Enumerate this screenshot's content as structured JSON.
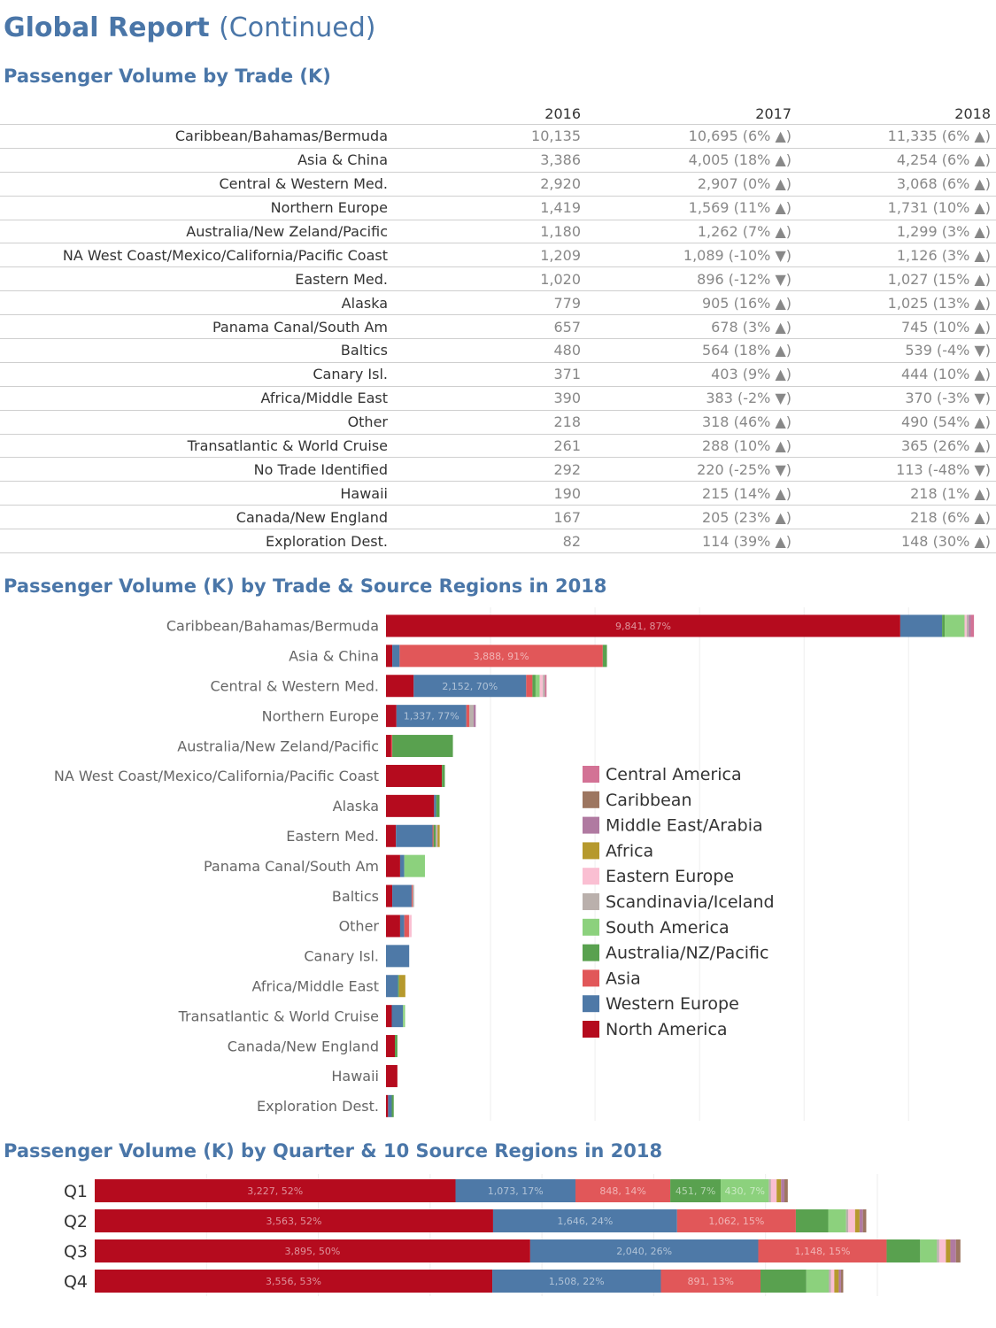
{
  "page": {
    "title_main": "Global Report",
    "title_sub": "(Continued)",
    "section1_title": "Passenger Volume by Trade (K)",
    "section2_title": "Passenger Volume (K) by Trade & Source Regions in 2018",
    "section3_title": "Passenger Volume (K) by Quarter & 10 Source Regions in 2018"
  },
  "trade_table": {
    "columns": [
      "2016",
      "2017",
      "2018"
    ],
    "rows": [
      {
        "name": "Caribbean/Bahamas/Bermuda",
        "v2016": "10,135",
        "v2017": "10,695 (6% ▲)",
        "v2018": "11,335 (6% ▲)"
      },
      {
        "name": "Asia & China",
        "v2016": "3,386",
        "v2017": "4,005 (18% ▲)",
        "v2018": "4,254 (6% ▲)"
      },
      {
        "name": "Central & Western Med.",
        "v2016": "2,920",
        "v2017": "2,907 (0% ▲)",
        "v2018": "3,068 (6% ▲)"
      },
      {
        "name": "Northern Europe",
        "v2016": "1,419",
        "v2017": "1,569 (11% ▲)",
        "v2018": "1,731 (10% ▲)"
      },
      {
        "name": "Australia/New Zeland/Pacific",
        "v2016": "1,180",
        "v2017": "1,262 (7% ▲)",
        "v2018": "1,299 (3% ▲)"
      },
      {
        "name": "NA West Coast/Mexico/California/Pacific Coast",
        "v2016": "1,209",
        "v2017": "1,089 (-10% ▼)",
        "v2018": "1,126 (3% ▲)"
      },
      {
        "name": "Eastern Med.",
        "v2016": "1,020",
        "v2017": "896 (-12% ▼)",
        "v2018": "1,027 (15% ▲)"
      },
      {
        "name": "Alaska",
        "v2016": "779",
        "v2017": "905 (16% ▲)",
        "v2018": "1,025 (13% ▲)"
      },
      {
        "name": "Panama Canal/South Am",
        "v2016": "657",
        "v2017": "678 (3% ▲)",
        "v2018": "745 (10% ▲)"
      },
      {
        "name": "Baltics",
        "v2016": "480",
        "v2017": "564 (18% ▲)",
        "v2018": "539 (-4% ▼)"
      },
      {
        "name": "Canary Isl.",
        "v2016": "371",
        "v2017": "403 (9% ▲)",
        "v2018": "444 (10% ▲)"
      },
      {
        "name": "Africa/Middle East",
        "v2016": "390",
        "v2017": "383 (-2% ▼)",
        "v2018": "370 (-3% ▼)"
      },
      {
        "name": "Other",
        "v2016": "218",
        "v2017": "318 (46% ▲)",
        "v2018": "490 (54% ▲)"
      },
      {
        "name": "Transatlantic & World Cruise",
        "v2016": "261",
        "v2017": "288 (10% ▲)",
        "v2018": "365 (26% ▲)"
      },
      {
        "name": "No Trade Identified",
        "v2016": "292",
        "v2017": "220 (-25% ▼)",
        "v2018": "113 (-48% ▼)"
      },
      {
        "name": "Hawaii",
        "v2016": "190",
        "v2017": "215 (14% ▲)",
        "v2018": "218 (1% ▲)"
      },
      {
        "name": "Canada/New England",
        "v2016": "167",
        "v2017": "205 (23% ▲)",
        "v2018": "218 (6% ▲)"
      },
      {
        "name": "Exploration Dest.",
        "v2016": "82",
        "v2017": "114 (39% ▲)",
        "v2018": "148 (30% ▲)"
      }
    ]
  },
  "region_colors": {
    "North America": "#b50b1e",
    "Western Europe": "#4e79a7",
    "Asia": "#e15759",
    "Australia/NZ/Pacific": "#59a14f",
    "South America": "#8cd17d",
    "Scandinavia/Iceland": "#bab0ac",
    "Eastern Europe": "#fabfd2",
    "Africa": "#b6992d",
    "Middle East/Arabia": "#b07aa1",
    "Caribbean": "#9d7660",
    "Central America": "#d37295"
  },
  "chart_data": [
    {
      "type": "bar",
      "orientation": "horizontal",
      "stacked": true,
      "title": "Passenger Volume (K) by Trade & Source Regions in 2018",
      "xlim": [
        0,
        11300
      ],
      "gridlines": [
        2000,
        4000,
        6000,
        8000,
        10000
      ],
      "legend_position": "center-right",
      "legend": [
        "Central America",
        "Caribbean",
        "Middle East/Arabia",
        "Africa",
        "Eastern Europe",
        "Scandinavia/Iceland",
        "South America",
        "Australia/NZ/Pacific",
        "Asia",
        "Western Europe",
        "North America"
      ],
      "categories": [
        {
          "name": "Caribbean/Bahamas/Bermuda",
          "segments": [
            [
              "North America",
              9841,
              "9,841, 87%"
            ],
            [
              "Western Europe",
              800
            ],
            [
              "Australia/NZ/Pacific",
              50
            ],
            [
              "South America",
              380
            ],
            [
              "Eastern Europe",
              40
            ],
            [
              "Scandinavia/Iceland",
              40
            ],
            [
              "Middle East/Arabia",
              40
            ],
            [
              "Central America",
              60
            ]
          ]
        },
        {
          "name": "Asia & China",
          "segments": [
            [
              "North America",
              120
            ],
            [
              "Western Europe",
              140
            ],
            [
              "Asia",
              3888,
              "3,888, 91%"
            ],
            [
              "Australia/NZ/Pacific",
              80
            ]
          ]
        },
        {
          "name": "Central & Western Med.",
          "segments": [
            [
              "North America",
              530
            ],
            [
              "Western Europe",
              2152,
              "2,152, 70%"
            ],
            [
              "Asia",
              120
            ],
            [
              "Australia/NZ/Pacific",
              60
            ],
            [
              "South America",
              80
            ],
            [
              "Eastern Europe",
              60
            ],
            [
              "Scandinavia/Iceland",
              40
            ],
            [
              "Central America",
              30
            ]
          ]
        },
        {
          "name": "Northern Europe",
          "segments": [
            [
              "North America",
              200
            ],
            [
              "Western Europe",
              1337,
              "1,337, 77%"
            ],
            [
              "Asia",
              60
            ],
            [
              "Scandinavia/Iceland",
              80
            ],
            [
              "Middle East/Arabia",
              40
            ]
          ]
        },
        {
          "name": "Australia/New Zeland/Pacific",
          "segments": [
            [
              "North America",
              100
            ],
            [
              "Asia",
              20
            ],
            [
              "Australia/NZ/Pacific",
              1160
            ]
          ]
        },
        {
          "name": "NA West Coast/Mexico/California/Pacific Coast",
          "segments": [
            [
              "North America",
              1070
            ],
            [
              "Australia/NZ/Pacific",
              56
            ]
          ]
        },
        {
          "name": "Alaska",
          "segments": [
            [
              "North America",
              920
            ],
            [
              "Western Europe",
              40
            ],
            [
              "Australia/NZ/Pacific",
              65
            ]
          ]
        },
        {
          "name": "Eastern Med.",
          "segments": [
            [
              "North America",
              190
            ],
            [
              "Western Europe",
              700
            ],
            [
              "Asia",
              20
            ],
            [
              "Australia/NZ/Pacific",
              40
            ],
            [
              "Scandinavia/Iceland",
              37
            ],
            [
              "Africa",
              40
            ]
          ]
        },
        {
          "name": "Panama Canal/South Am",
          "segments": [
            [
              "North America",
              270
            ],
            [
              "Western Europe",
              80
            ],
            [
              "South America",
              395
            ]
          ]
        },
        {
          "name": "Baltics",
          "segments": [
            [
              "North America",
              120
            ],
            [
              "Western Europe",
              370
            ],
            [
              "Asia",
              20
            ],
            [
              "Scandinavia/Iceland",
              29
            ]
          ]
        },
        {
          "name": "Other",
          "segments": [
            [
              "North America",
              270
            ],
            [
              "Western Europe",
              80
            ],
            [
              "Asia",
              90
            ],
            [
              "Eastern Europe",
              50
            ]
          ]
        },
        {
          "name": "Canary Isl.",
          "segments": [
            [
              "Western Europe",
              444
            ]
          ]
        },
        {
          "name": "Africa/Middle East",
          "segments": [
            [
              "Western Europe",
              230
            ],
            [
              "Australia/NZ/Pacific",
              20
            ],
            [
              "Africa",
              120
            ]
          ]
        },
        {
          "name": "Transatlantic & World Cruise",
          "segments": [
            [
              "North America",
              110
            ],
            [
              "Western Europe",
              215
            ],
            [
              "South America",
              40
            ]
          ]
        },
        {
          "name": "Canada/New England",
          "segments": [
            [
              "North America",
              170
            ],
            [
              "Australia/NZ/Pacific",
              48
            ]
          ]
        },
        {
          "name": "Hawaii",
          "segments": [
            [
              "North America",
              218
            ]
          ]
        },
        {
          "name": "Exploration Dest.",
          "segments": [
            [
              "North America",
              40
            ],
            [
              "Western Europe",
              70
            ],
            [
              "Australia/NZ/Pacific",
              38
            ]
          ]
        }
      ]
    },
    {
      "type": "bar",
      "orientation": "horizontal",
      "stacked": true,
      "title": "Passenger Volume (K) by Quarter & 10 Source Regions in 2018",
      "xlim": [
        0,
        7800
      ],
      "gridlines": [
        1000,
        2000,
        3000,
        4000,
        5000,
        6000,
        7000
      ],
      "categories": [
        {
          "name": "Q1",
          "segments": [
            [
              "North America",
              3227,
              "3,227, 52%"
            ],
            [
              "Western Europe",
              1073,
              "1,073, 17%"
            ],
            [
              "Asia",
              848,
              "848, 14%"
            ],
            [
              "Australia/NZ/Pacific",
              451,
              "451, 7%"
            ],
            [
              "South America",
              430,
              "430, 7%"
            ],
            [
              "Scandinavia/Iceland",
              20
            ],
            [
              "Eastern Europe",
              50
            ],
            [
              "Africa",
              40
            ],
            [
              "Middle East/Arabia",
              30
            ],
            [
              "Caribbean",
              30
            ]
          ]
        },
        {
          "name": "Q2",
          "segments": [
            [
              "North America",
              3563,
              "3,563, 52%"
            ],
            [
              "Western Europe",
              1646,
              "1,646, 24%"
            ],
            [
              "Asia",
              1062,
              "1,062, 15%"
            ],
            [
              "Australia/NZ/Pacific",
              290
            ],
            [
              "South America",
              160
            ],
            [
              "Scandinavia/Iceland",
              20
            ],
            [
              "Eastern Europe",
              60
            ],
            [
              "Africa",
              40
            ],
            [
              "Middle East/Arabia",
              30
            ],
            [
              "Caribbean",
              30
            ]
          ]
        },
        {
          "name": "Q3",
          "segments": [
            [
              "North America",
              3895,
              "3,895, 50%"
            ],
            [
              "Western Europe",
              2040,
              "2,040, 26%"
            ],
            [
              "Asia",
              1148,
              "1,148, 15%"
            ],
            [
              "Australia/NZ/Pacific",
              300
            ],
            [
              "South America",
              150
            ],
            [
              "Scandinavia/Iceland",
              20
            ],
            [
              "Eastern Europe",
              60
            ],
            [
              "Africa",
              40
            ],
            [
              "Middle East/Arabia",
              50
            ],
            [
              "Caribbean",
              40
            ]
          ]
        },
        {
          "name": "Q4",
          "segments": [
            [
              "North America",
              3556,
              "3,556, 53%"
            ],
            [
              "Western Europe",
              1508,
              "1,508, 22%"
            ],
            [
              "Asia",
              891,
              "891, 13%"
            ],
            [
              "Australia/NZ/Pacific",
              410
            ],
            [
              "South America",
              200
            ],
            [
              "Scandinavia/Iceland",
              20
            ],
            [
              "Eastern Europe",
              30
            ],
            [
              "Africa",
              40
            ],
            [
              "Middle East/Arabia",
              20
            ],
            [
              "Caribbean",
              20
            ]
          ]
        }
      ]
    }
  ]
}
